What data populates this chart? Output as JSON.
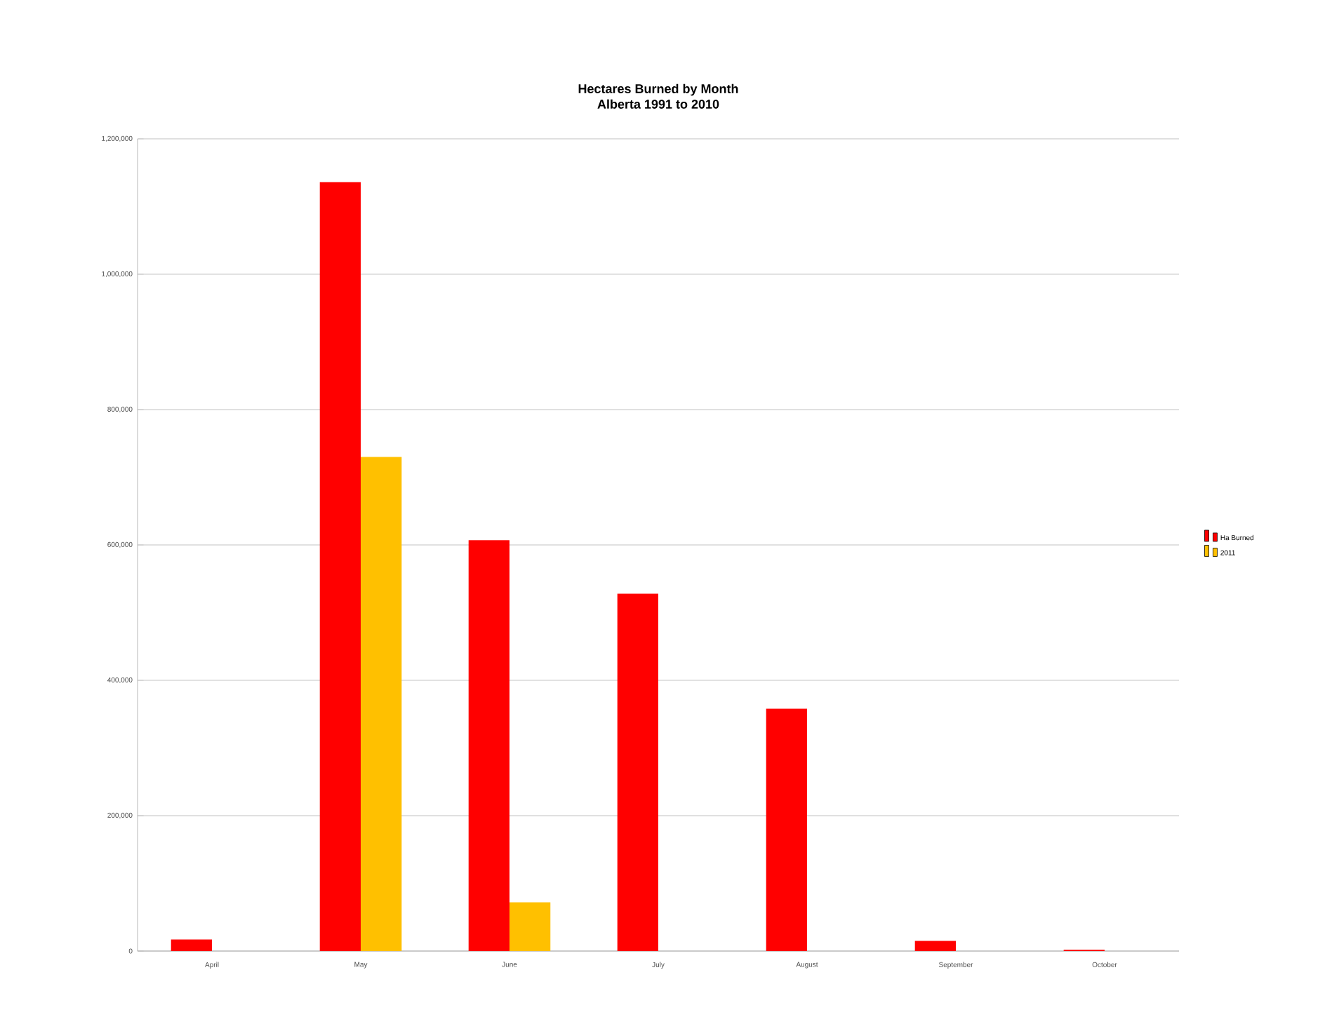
{
  "chart_data": {
    "type": "bar",
    "title": "Hectares Burned by Month\nAlberta 1991 to 2010",
    "categories": [
      "April",
      "May",
      "June",
      "July",
      "August",
      "September",
      "October"
    ],
    "series": [
      {
        "name": "Ha Burned",
        "color": "#ff0000",
        "values": [
          17000,
          1136000,
          607000,
          528000,
          358000,
          15000,
          2000
        ]
      },
      {
        "name": "2011",
        "color": "#ffc000",
        "values": [
          null,
          730000,
          72000,
          null,
          null,
          null,
          null
        ]
      }
    ],
    "ylim": [
      0,
      1200000
    ],
    "yticks": [
      {
        "value": 0,
        "label": "0"
      },
      {
        "value": 200000,
        "label": "200,000"
      },
      {
        "value": 400000,
        "label": "400,000"
      },
      {
        "value": 600000,
        "label": "600,000"
      },
      {
        "value": 800000,
        "label": "800,000"
      },
      {
        "value": 1000000,
        "label": "1,000,000"
      },
      {
        "value": 1200000,
        "label": "1,200,000"
      }
    ],
    "grid": "y",
    "legend": "right"
  }
}
